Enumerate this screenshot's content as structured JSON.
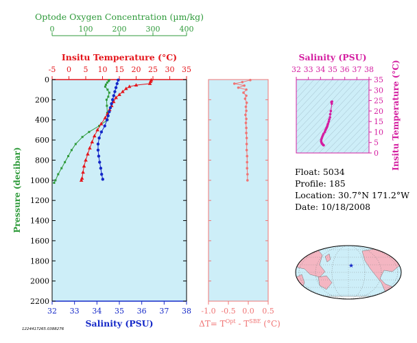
{
  "float_info": {
    "float": "Float:  5034",
    "profile": "Profile:  185",
    "location": "Location:  30.7°N  171.2°W",
    "date": "Date:  10/18/2008"
  },
  "image_id": "1224417265.0388276",
  "colors": {
    "oxygen": "#2e9a3a",
    "temperature": "#e4141a",
    "salinity": "#1428c8",
    "delta_t": "#f07474",
    "ts_salinity": "#d41ea0",
    "panel_bg": "#cdeef8",
    "land": "#f4b6c2",
    "ocean": "#cdeef8"
  },
  "chart_data": [
    {
      "type": "line",
      "name": "profile",
      "title": "",
      "ylabel": "Pressure (decibar)",
      "ylim": [
        0,
        2200
      ],
      "yticks": [
        "0",
        "200",
        "400",
        "600",
        "800",
        "1000",
        "1200",
        "1400",
        "1600",
        "1800",
        "2000",
        "2200"
      ],
      "axes": {
        "oxygen": {
          "label": "Optode Oxygen Concentration (µm/kg)",
          "range": [
            0,
            400
          ],
          "ticks": [
            "0",
            "100",
            "200",
            "300",
            "400"
          ]
        },
        "temperature": {
          "label": "Insitu Temperature (°C)",
          "range": [
            -5,
            35
          ],
          "ticks": [
            "-5",
            "0",
            "5",
            "10",
            "15",
            "20",
            "25",
            "30",
            "35"
          ]
        },
        "salinity": {
          "label": "Salinity (PSU)",
          "range": [
            32,
            38
          ],
          "ticks": [
            "32",
            "33",
            "34",
            "35",
            "36",
            "37",
            "38"
          ]
        }
      },
      "series": [
        {
          "name": "oxygen",
          "points": [
            [
              170,
              5
            ],
            [
              168,
              15
            ],
            [
              164,
              30
            ],
            [
              160,
              50
            ],
            [
              158,
              70
            ],
            [
              165,
              100
            ],
            [
              170,
              130
            ],
            [
              167,
              170
            ],
            [
              162,
              200
            ],
            [
              163,
              260
            ],
            [
              164,
              330
            ],
            [
              165,
              400
            ],
            [
              140,
              460
            ],
            [
              110,
              520
            ],
            [
              90,
              570
            ],
            [
              70,
              640
            ],
            [
              58,
              700
            ],
            [
              48,
              760
            ],
            [
              38,
              820
            ],
            [
              28,
              880
            ],
            [
              18,
              940
            ],
            [
              10,
              1000
            ],
            [
              6,
              1025
            ]
          ]
        },
        {
          "name": "temperature",
          "points": [
            [
              24.5,
              5
            ],
            [
              24.3,
              20
            ],
            [
              24.1,
              40
            ],
            [
              20,
              55
            ],
            [
              18,
              70
            ],
            [
              17,
              90
            ],
            [
              16,
              120
            ],
            [
              15,
              150
            ],
            [
              14,
              180
            ],
            [
              13.3,
              220
            ],
            [
              12.7,
              260
            ],
            [
              12.1,
              300
            ],
            [
              11.5,
              340
            ],
            [
              10.8,
              380
            ],
            [
              9.6,
              440
            ],
            [
              8.5,
              500
            ],
            [
              7.6,
              560
            ],
            [
              6.9,
              620
            ],
            [
              6.2,
              680
            ],
            [
              5.6,
              740
            ],
            [
              5.0,
              800
            ],
            [
              4.5,
              860
            ],
            [
              4.2,
              920
            ],
            [
              3.9,
              980
            ],
            [
              3.7,
              1000
            ]
          ]
        },
        {
          "name": "salinity",
          "points": [
            [
              34.95,
              5
            ],
            [
              34.9,
              40
            ],
            [
              34.85,
              80
            ],
            [
              34.8,
              120
            ],
            [
              34.75,
              160
            ],
            [
              34.7,
              200
            ],
            [
              34.65,
              240
            ],
            [
              34.6,
              280
            ],
            [
              34.55,
              320
            ],
            [
              34.5,
              360
            ],
            [
              34.45,
              400
            ],
            [
              34.35,
              460
            ],
            [
              34.2,
              520
            ],
            [
              34.1,
              580
            ],
            [
              34.05,
              640
            ],
            [
              34.05,
              700
            ],
            [
              34.08,
              760
            ],
            [
              34.12,
              820
            ],
            [
              34.17,
              880
            ],
            [
              34.21,
              940
            ],
            [
              34.26,
              990
            ]
          ]
        }
      ]
    },
    {
      "type": "scatter",
      "name": "delta_t",
      "xlabel": "ΔT= T^Opt - T^SBE (°C)",
      "xlim": [
        -1.0,
        0.5
      ],
      "ylim": [
        0,
        2200
      ],
      "xticks": [
        "-1.0",
        "-0.5",
        "0.0",
        "0.5"
      ],
      "points": [
        [
          0.05,
          5
        ],
        [
          -0.15,
          25
        ],
        [
          -0.35,
          40
        ],
        [
          -0.1,
          60
        ],
        [
          -0.25,
          80
        ],
        [
          -0.05,
          100
        ],
        [
          -0.12,
          130
        ],
        [
          -0.05,
          160
        ],
        [
          -0.08,
          190
        ],
        [
          -0.04,
          230
        ],
        [
          -0.06,
          270
        ],
        [
          -0.05,
          310
        ],
        [
          -0.07,
          350
        ],
        [
          -0.05,
          390
        ],
        [
          -0.06,
          430
        ],
        [
          -0.05,
          480
        ],
        [
          -0.05,
          530
        ],
        [
          -0.04,
          580
        ],
        [
          -0.04,
          640
        ],
        [
          -0.04,
          700
        ],
        [
          -0.03,
          760
        ],
        [
          -0.03,
          820
        ],
        [
          -0.03,
          880
        ],
        [
          -0.02,
          940
        ],
        [
          -0.02,
          1000
        ]
      ]
    },
    {
      "type": "scatter",
      "name": "ts_diagram",
      "xlabel": "Salinity (PSU)",
      "ylabel": "Insitu Temperature (°C)",
      "xlim": [
        32,
        38
      ],
      "ylim": [
        0,
        35
      ],
      "xticks": [
        "32",
        "33",
        "34",
        "35",
        "36",
        "37",
        "38"
      ],
      "yticks": [
        "0",
        "5",
        "10",
        "15",
        "20",
        "25",
        "30",
        "35"
      ],
      "points": [
        [
          34.95,
          24.5
        ],
        [
          34.9,
          24.3
        ],
        [
          34.93,
          23.5
        ],
        [
          34.85,
          20
        ],
        [
          34.8,
          18.5
        ],
        [
          34.78,
          17
        ],
        [
          34.72,
          16
        ],
        [
          34.68,
          15
        ],
        [
          34.62,
          14
        ],
        [
          34.58,
          13.3
        ],
        [
          34.55,
          12.6
        ],
        [
          34.5,
          12
        ],
        [
          34.45,
          11.4
        ],
        [
          34.4,
          10.8
        ],
        [
          34.35,
          10
        ],
        [
          34.25,
          9.2
        ],
        [
          34.2,
          8.5
        ],
        [
          34.15,
          7.8
        ],
        [
          34.1,
          7
        ],
        [
          34.06,
          6.3
        ],
        [
          34.05,
          5.6
        ],
        [
          34.08,
          5
        ],
        [
          34.12,
          4.5
        ],
        [
          34.17,
          4.2
        ],
        [
          34.21,
          3.9
        ],
        [
          34.26,
          3.7
        ]
      ]
    }
  ]
}
